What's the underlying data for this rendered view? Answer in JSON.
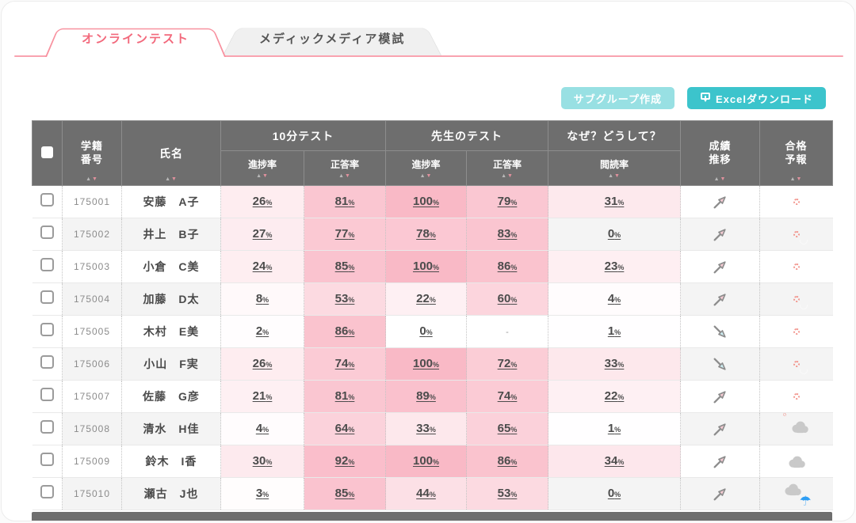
{
  "tabs": [
    {
      "label": "オンラインテスト",
      "active": true
    },
    {
      "label": "メディックメディア模試",
      "active": false
    }
  ],
  "toolbar": {
    "subgroup_label": "サブグループ作成",
    "excel_label": "Excelダウンロード"
  },
  "colors": {
    "accent_pink": "#f8919f",
    "tab_active_text": "#f2697c",
    "button_teal_light": "#98e0e3",
    "button_teal": "#3cc4cc",
    "header_gray": "#6e6e6e",
    "cell_pink_base": "rgba(244,120,146,A)",
    "sun_red": "#e8330f",
    "cloud_gray": "#c9c9c9",
    "umbrella_blue": "#2e9ef4"
  },
  "icons": {
    "excel_button": "download-to-computer-icon",
    "trend_up": "arrow-up-right-icon",
    "trend_down": "arrow-down-right-icon",
    "forecast_sunny": "sun-icon",
    "forecast_partly": "sun-behind-cloud-icon",
    "forecast_cloudy": "cloud-icon",
    "forecast_rainy": "cloud-umbrella-icon",
    "sort": "sort-arrows-icon"
  },
  "table": {
    "headers": {
      "student_id_line1": "学籍",
      "student_id_line2": "番号",
      "name": "氏名",
      "group_ten_min": "10分テスト",
      "group_teacher": "先生のテスト",
      "group_naze": "なぜ？どうして？",
      "progress_rate": "進捗率",
      "correct_rate": "正答率",
      "reading_rate": "閲読率",
      "trend_line1": "成績",
      "trend_line2": "推移",
      "forecast_line1": "合格",
      "forecast_line2": "予報"
    },
    "unit": "%",
    "empty_value": "-",
    "rows": [
      {
        "id": "175001",
        "name": "安藤　A子",
        "ten_min_progress": 26,
        "ten_min_correct": 81,
        "teacher_progress": 100,
        "teacher_correct": 79,
        "reading": 31,
        "trend": "up",
        "forecast": "sunny"
      },
      {
        "id": "175002",
        "name": "井上　B子",
        "ten_min_progress": 27,
        "ten_min_correct": 77,
        "teacher_progress": 78,
        "teacher_correct": 83,
        "reading": 0,
        "trend": "up",
        "forecast": "sunny"
      },
      {
        "id": "175003",
        "name": "小倉　C美",
        "ten_min_progress": 24,
        "ten_min_correct": 85,
        "teacher_progress": 100,
        "teacher_correct": 86,
        "reading": 23,
        "trend": "up",
        "forecast": "sunny"
      },
      {
        "id": "175004",
        "name": "加藤　D太",
        "ten_min_progress": 8,
        "ten_min_correct": 53,
        "teacher_progress": 22,
        "teacher_correct": 60,
        "reading": 4,
        "trend": "up",
        "forecast": "sunny"
      },
      {
        "id": "175005",
        "name": "木村　E美",
        "ten_min_progress": 2,
        "ten_min_correct": 86,
        "teacher_progress": 0,
        "teacher_correct": null,
        "reading": 1,
        "trend": "down",
        "forecast": "sunny"
      },
      {
        "id": "175006",
        "name": "小山　F実",
        "ten_min_progress": 26,
        "ten_min_correct": 74,
        "teacher_progress": 100,
        "teacher_correct": 72,
        "reading": 33,
        "trend": "down",
        "forecast": "sunny"
      },
      {
        "id": "175007",
        "name": "佐藤　G彦",
        "ten_min_progress": 21,
        "ten_min_correct": 81,
        "teacher_progress": 89,
        "teacher_correct": 74,
        "reading": 22,
        "trend": "up",
        "forecast": "sunny"
      },
      {
        "id": "175008",
        "name": "清水　H佳",
        "ten_min_progress": 4,
        "ten_min_correct": 64,
        "teacher_progress": 33,
        "teacher_correct": 65,
        "reading": 1,
        "trend": "up",
        "forecast": "partly"
      },
      {
        "id": "175009",
        "name": "鈴木　I香",
        "ten_min_progress": 30,
        "ten_min_correct": 92,
        "teacher_progress": 100,
        "teacher_correct": 86,
        "reading": 34,
        "trend": "up",
        "forecast": "cloudy"
      },
      {
        "id": "175010",
        "name": "瀬古　J也",
        "ten_min_progress": 3,
        "ten_min_correct": 85,
        "teacher_progress": 44,
        "teacher_correct": 53,
        "reading": 0,
        "trend": "up",
        "forecast": "rainy"
      }
    ]
  }
}
